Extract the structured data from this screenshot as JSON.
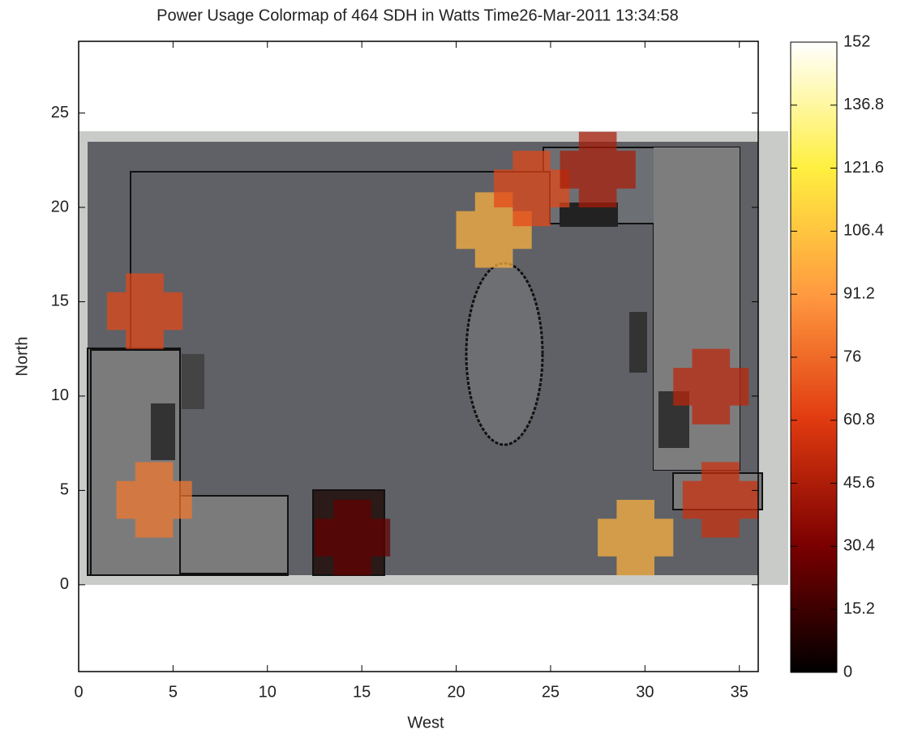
{
  "chart_data": {
    "type": "heatmap",
    "title": "Power Usage Colormap of 464 SDH in Watts Time26-Mar-2011 13:34:58",
    "xlabel": "West",
    "ylabel": "North",
    "xlim": [
      0,
      36
    ],
    "ylim": [
      -4.6,
      28.8
    ],
    "xticks": [
      0,
      5,
      10,
      15,
      20,
      25,
      30,
      35
    ],
    "yticks": [
      0,
      5,
      10,
      15,
      20,
      25
    ],
    "clim": [
      0,
      152
    ],
    "cticks": [
      0,
      15.2,
      30.4,
      45.6,
      60.8,
      76,
      91.2,
      106.4,
      121.6,
      136.8,
      152
    ],
    "colormap": [
      "#000000",
      "#7a0000",
      "#e03a10",
      "#ff9a40",
      "#ffef40",
      "#ffffff"
    ],
    "points": {
      "x": [
        3.5,
        4,
        14.5,
        22,
        24,
        27.5,
        29.5,
        33.5,
        34
      ],
      "y": [
        14.5,
        4.5,
        2.5,
        18.8,
        21,
        22,
        2.5,
        10.5,
        4.5
      ],
      "values": [
        65,
        80,
        25,
        100,
        65,
        45,
        100,
        50,
        55
      ]
    }
  }
}
